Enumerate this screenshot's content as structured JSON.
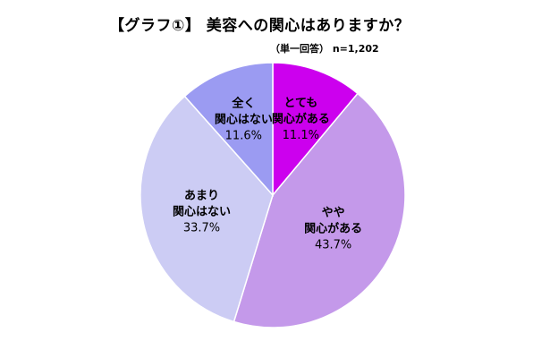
{
  "chart_data": {
    "type": "pie",
    "title": "【グラフ①】 美容への関心はありますか？",
    "subtitle": "（単一回答） n=1,202",
    "start_angle_deg": 0,
    "direction": "clockwise",
    "slices": [
      {
        "label_lines": [
          "とても",
          "関心がある"
        ],
        "value": 11.1,
        "value_label": "11.1%",
        "color": "#cc00ee"
      },
      {
        "label_lines": [
          "やや",
          "関心がある"
        ],
        "value": 43.7,
        "value_label": "43.7%",
        "color": "#c499ea"
      },
      {
        "label_lines": [
          "あまり",
          "関心はない"
        ],
        "value": 33.7,
        "value_label": "33.7%",
        "color": "#ccccf4"
      },
      {
        "label_lines": [
          "全く",
          "関心はない"
        ],
        "value": 11.6,
        "value_label": "11.6%",
        "color": "#9b9bf2"
      }
    ]
  }
}
